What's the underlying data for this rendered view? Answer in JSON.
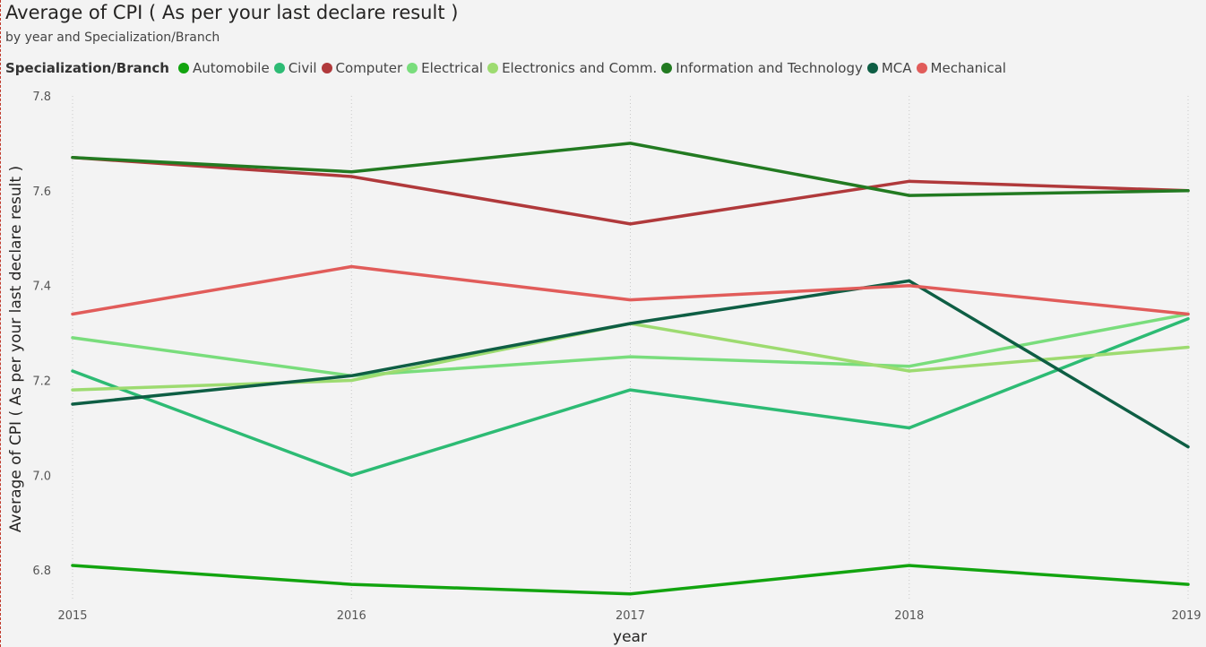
{
  "chart_data": {
    "type": "line",
    "title": "Average of CPI ( As per your last declare result )",
    "subtitle": "by year and Specialization/Branch",
    "legend_title": "Specialization/Branch",
    "legend_placement": "top-left",
    "xlabel": "year",
    "ylabel": "Average of CPI ( As per your last declare result )",
    "x": [
      "2015",
      "2016",
      "2017",
      "2018",
      "2019"
    ],
    "ylim": [
      6.74,
      7.8
    ],
    "yticks": [
      "6.8",
      "7.0",
      "7.2",
      "7.4",
      "7.6",
      "7.8"
    ],
    "grid": "vertical dotted",
    "series": [
      {
        "name": "Automobile",
        "color": "#12a40f",
        "values": [
          6.81,
          6.77,
          6.75,
          6.81,
          6.77
        ]
      },
      {
        "name": "Civil",
        "color": "#2dbb74",
        "values": [
          7.22,
          7.0,
          7.18,
          7.1,
          7.33
        ]
      },
      {
        "name": "Computer",
        "color": "#b0393b",
        "values": [
          7.67,
          7.63,
          7.53,
          7.62,
          7.6
        ]
      },
      {
        "name": "Electrical",
        "color": "#79dd7c",
        "values": [
          7.29,
          7.21,
          7.25,
          7.23,
          7.34
        ]
      },
      {
        "name": "Electronics and Comm.",
        "color": "#9ddb70",
        "values": [
          7.18,
          7.2,
          7.32,
          7.22,
          7.27
        ]
      },
      {
        "name": "Information and Technology",
        "color": "#227a21",
        "values": [
          7.67,
          7.64,
          7.7,
          7.59,
          7.6
        ]
      },
      {
        "name": "MCA",
        "color": "#0e5e44",
        "values": [
          7.15,
          7.21,
          7.32,
          7.41,
          7.06
        ]
      },
      {
        "name": "Mechanical",
        "color": "#e15c5a",
        "values": [
          7.34,
          7.44,
          7.37,
          7.4,
          7.34
        ]
      }
    ]
  }
}
